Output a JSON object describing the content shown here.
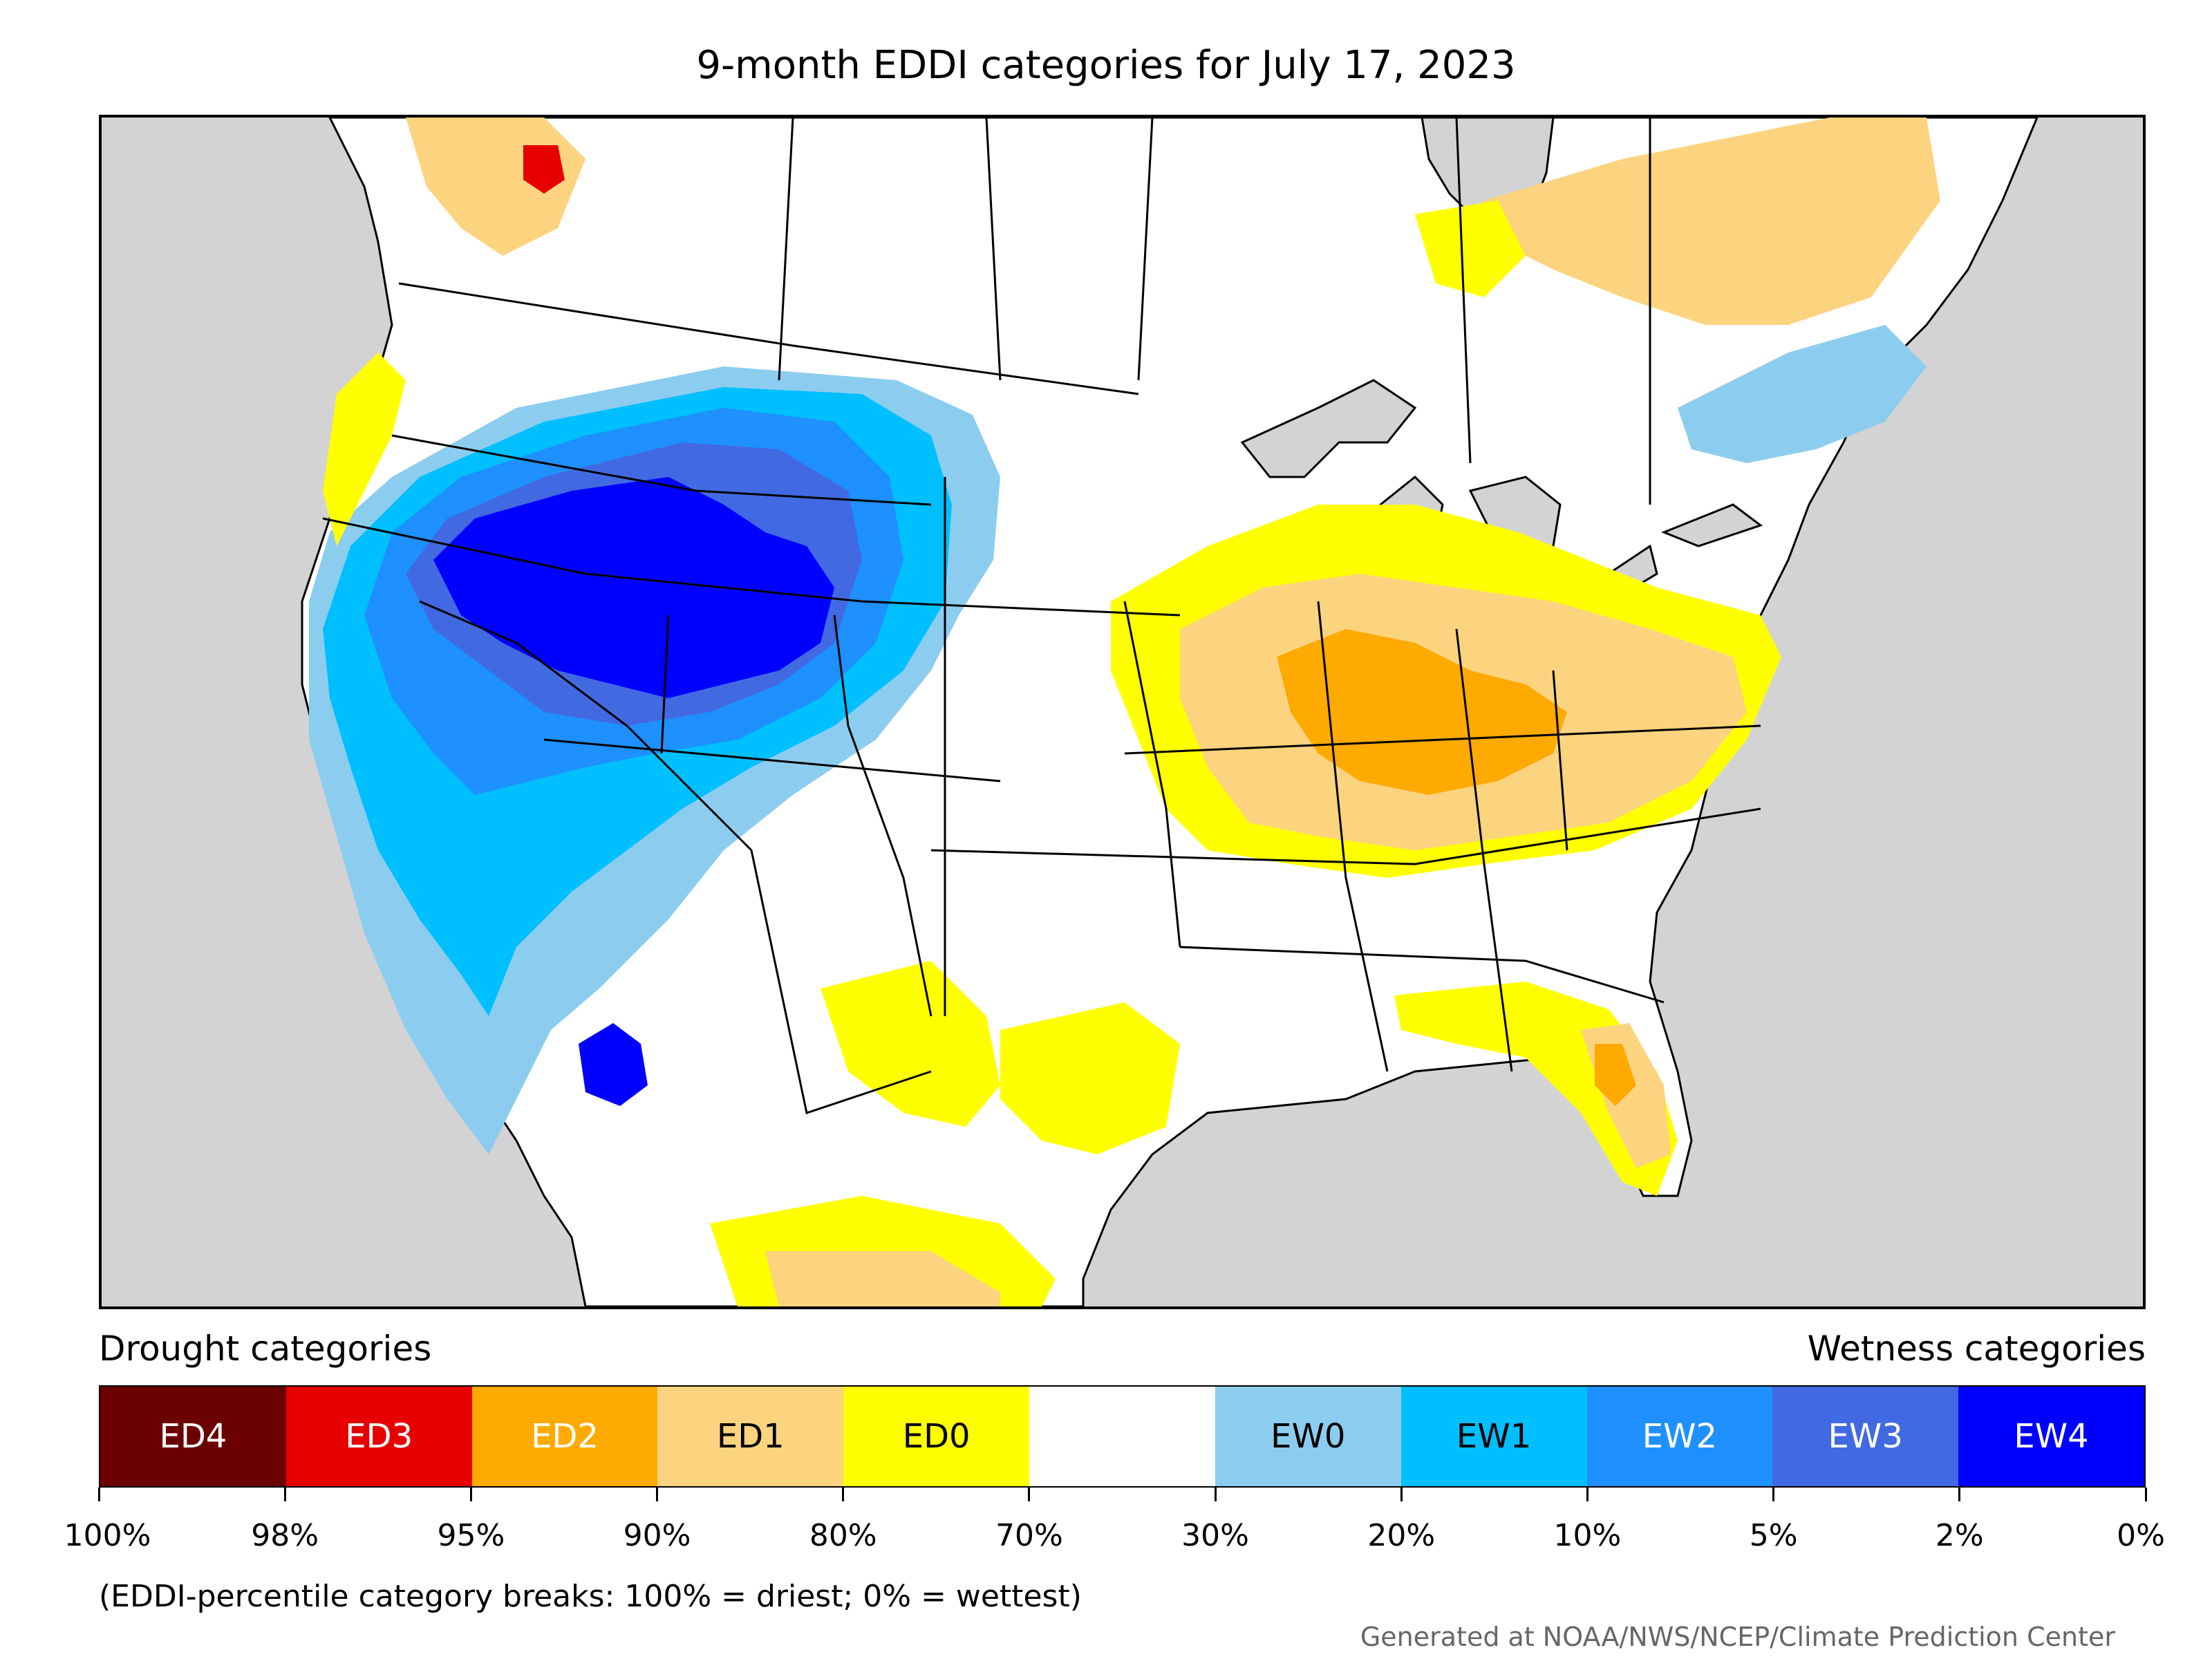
{
  "title": "9-month EDDI categories for July 17, 2023",
  "legend": {
    "drought_label": "Drought categories",
    "wetness_label": "Wetness categories",
    "categories": [
      {
        "label": "ED4",
        "color": "#6b0000",
        "text_color": "#ffffff"
      },
      {
        "label": "ED3",
        "color": "#e60000",
        "text_color": "#ffffff"
      },
      {
        "label": "ED2",
        "color": "#ffaa00",
        "text_color": "#ffffff"
      },
      {
        "label": "ED1",
        "color": "#fcd37f",
        "text_color": "#000000"
      },
      {
        "label": "ED0",
        "color": "#ffff00",
        "text_color": "#000000"
      },
      {
        "label": "",
        "color": "#ffffff",
        "text_color": "#000000"
      },
      {
        "label": "EW0",
        "color": "#8ccdef",
        "text_color": "#000000"
      },
      {
        "label": "EW1",
        "color": "#00bfff",
        "text_color": "#000000"
      },
      {
        "label": "EW2",
        "color": "#1e90ff",
        "text_color": "#ffffff"
      },
      {
        "label": "EW3",
        "color": "#4169e1",
        "text_color": "#ffffff"
      },
      {
        "label": "EW4",
        "color": "#0000ff",
        "text_color": "#ffffff"
      }
    ],
    "ticks": [
      "100%",
      "98%",
      "95%",
      "90%",
      "80%",
      "70%",
      "30%",
      "20%",
      "10%",
      "5%",
      "2%",
      "0%"
    ]
  },
  "note": "(EDDI-percentile category breaks: 100% = driest; 0% = wettest)",
  "credit": "Generated at NOAA/NWS/NCEP/Climate Prediction Center",
  "map": {
    "land_color": "#ffffff",
    "water_color": "#d3d3d3",
    "border_color": "#000000"
  }
}
